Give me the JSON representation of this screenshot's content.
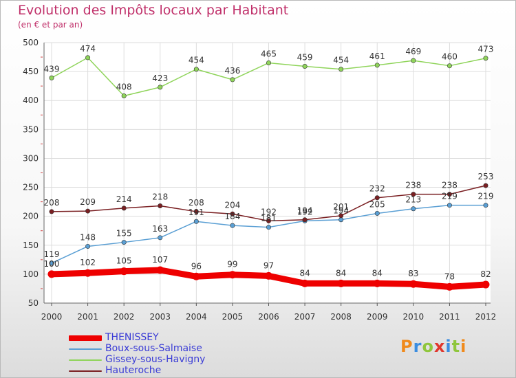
{
  "header": {
    "title": "Evolution des Impôts locaux par Habitant",
    "subtitle": "(en € et par an)"
  },
  "brand": {
    "text": "Proxiti",
    "colors": [
      "#f08a1c",
      "#3b8de0",
      "#8fc63c",
      "#e0362c",
      "#3b8de0",
      "#8fc63c",
      "#f08a1c"
    ]
  },
  "chart_data": {
    "type": "line",
    "x": [
      "2000",
      "2001",
      "2002",
      "2003",
      "2004",
      "2005",
      "2006",
      "2007",
      "2008",
      "2009",
      "2010",
      "2011",
      "2012"
    ],
    "ylim": [
      50,
      500
    ],
    "yticks": [
      50,
      100,
      150,
      200,
      250,
      300,
      350,
      400,
      450,
      500
    ],
    "grid": true,
    "legend_position": "bottom-left",
    "series": [
      {
        "name": "THENISSEY",
        "color": "#ee0000",
        "width": 9,
        "values": [
          100,
          102,
          105,
          107,
          96,
          99,
          97,
          84,
          84,
          84,
          83,
          78,
          82
        ],
        "labels": [
          "100",
          "102",
          "105",
          "107",
          "96",
          "99",
          "97",
          "84",
          "84",
          "84",
          "83",
          "78",
          "82"
        ]
      },
      {
        "name": "Boux-sous-Salmaise",
        "color": "#5a9fd4",
        "width": 1.5,
        "values": [
          119,
          148,
          155,
          163,
          191,
          184,
          181,
          192,
          194,
          205,
          213,
          219,
          219
        ],
        "labels": [
          "119",
          "148",
          "155",
          "163",
          "191",
          "184",
          "181",
          "192",
          "194",
          "205",
          "213",
          "219",
          "219"
        ]
      },
      {
        "name": "Gissey-sous-Havigny",
        "color": "#8fd45a",
        "width": 1.5,
        "values": [
          439,
          474,
          408,
          423,
          454,
          436,
          465,
          459,
          454,
          461,
          469,
          460,
          473
        ],
        "labels": [
          "439",
          "474",
          "408",
          "423",
          "454",
          "436",
          "465",
          "459",
          "454",
          "461",
          "469",
          "460",
          "473"
        ]
      },
      {
        "name": "Hauteroche",
        "color": "#7a1f22",
        "width": 1.5,
        "values": [
          208,
          209,
          214,
          218,
          208,
          204,
          192,
          194,
          201,
          232,
          238,
          238,
          253
        ],
        "labels": [
          "208",
          "209",
          "214",
          "218",
          "208",
          "204",
          "192",
          "194",
          "201",
          "232",
          "238",
          "238",
          "253"
        ]
      }
    ]
  }
}
